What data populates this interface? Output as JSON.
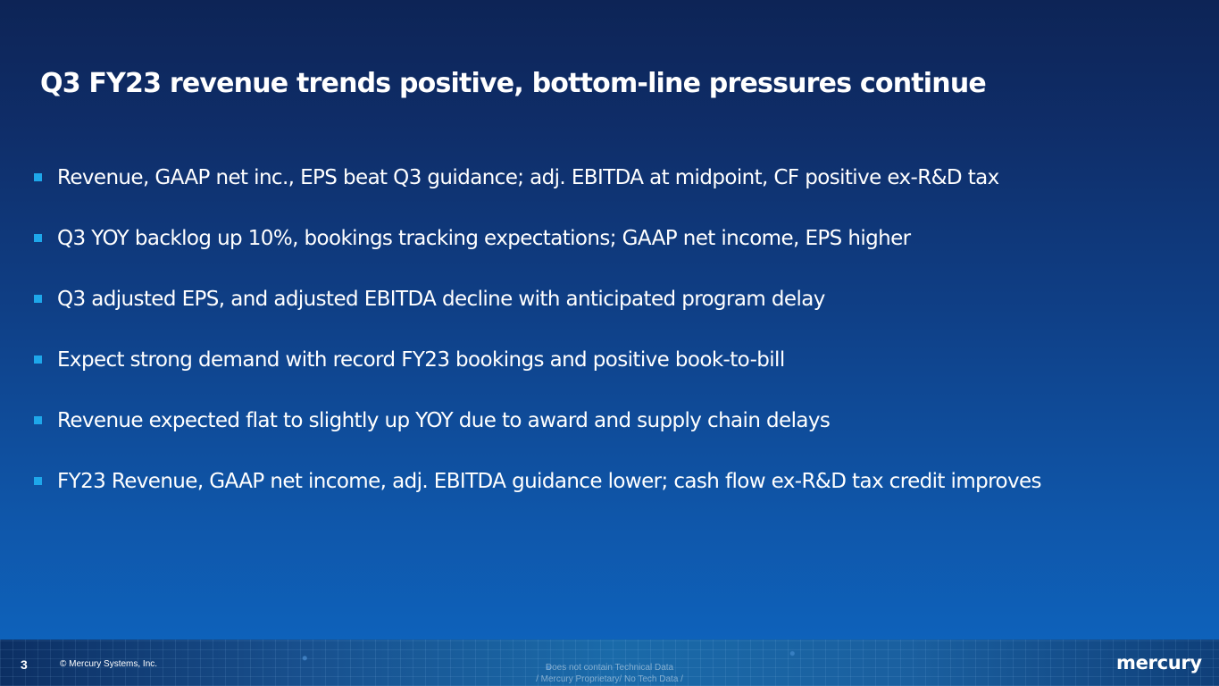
{
  "slide": {
    "title": "Q3 FY23 revenue trends positive, bottom-line pressures continue",
    "bullets": [
      "Revenue, GAAP net inc., EPS beat Q3 guidance; adj. EBITDA at midpoint, CF positive ex-R&D tax",
      "Q3 YOY backlog up 10%, bookings tracking expectations; GAAP net income, EPS higher",
      "Q3 adjusted EPS, and adjusted EBITDA decline with anticipated program delay",
      "Expect strong demand with record FY23 bookings and positive book-to-bill",
      "Revenue expected flat to slightly up YOY due to award and supply chain delays",
      "FY23 Revenue, GAAP net income, adj. EBITDA guidance lower; cash flow ex-R&D tax credit improves"
    ]
  },
  "footer": {
    "page_number": "3",
    "copyright": "© Mercury Systems, Inc.",
    "classification_line1": "Does not contain Technical Data",
    "classification_line2": "/ Mercury Proprietary/ No  Tech Data /",
    "logo": "mercury"
  },
  "colors": {
    "background_top": "#0d2456",
    "background_bottom": "#0e66c1",
    "bullet_marker": "#1ea7ea",
    "text": "#ffffff"
  }
}
